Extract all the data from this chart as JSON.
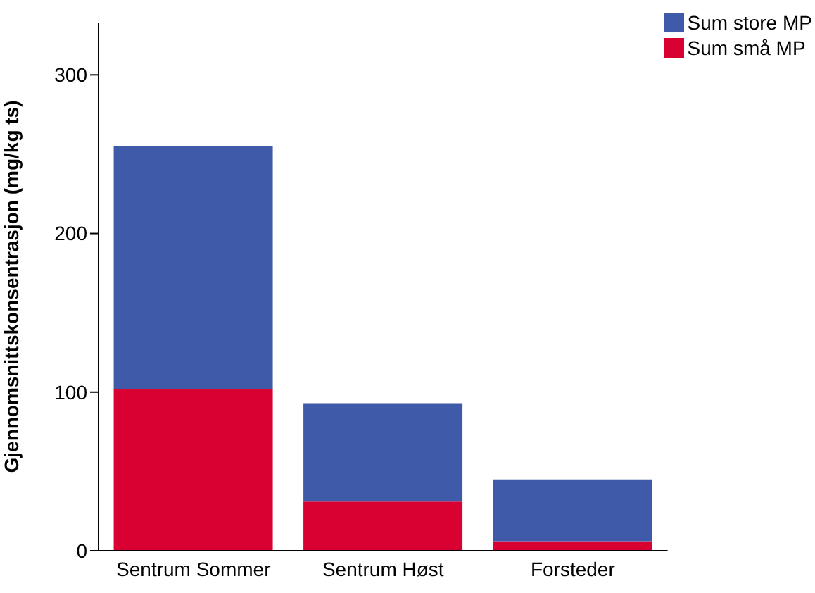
{
  "chart_data": {
    "type": "bar",
    "ylabel": "Gjennomsnittskonsentrasjon (mg/kg ts)",
    "categories": [
      "Sentrum Sommer",
      "Sentrum Høst",
      "Forsteder"
    ],
    "stacked": true,
    "series": [
      {
        "name": "Sum små MP",
        "color": "#d90032",
        "values": [
          102,
          31,
          6
        ]
      },
      {
        "name": "Sum store MP",
        "color": "#3f5aa8",
        "values": [
          153,
          62,
          39
        ]
      }
    ],
    "ylim": [
      0,
      333
    ],
    "yticks": [
      0,
      100,
      200,
      300
    ],
    "grid": false,
    "legend": "top right"
  }
}
